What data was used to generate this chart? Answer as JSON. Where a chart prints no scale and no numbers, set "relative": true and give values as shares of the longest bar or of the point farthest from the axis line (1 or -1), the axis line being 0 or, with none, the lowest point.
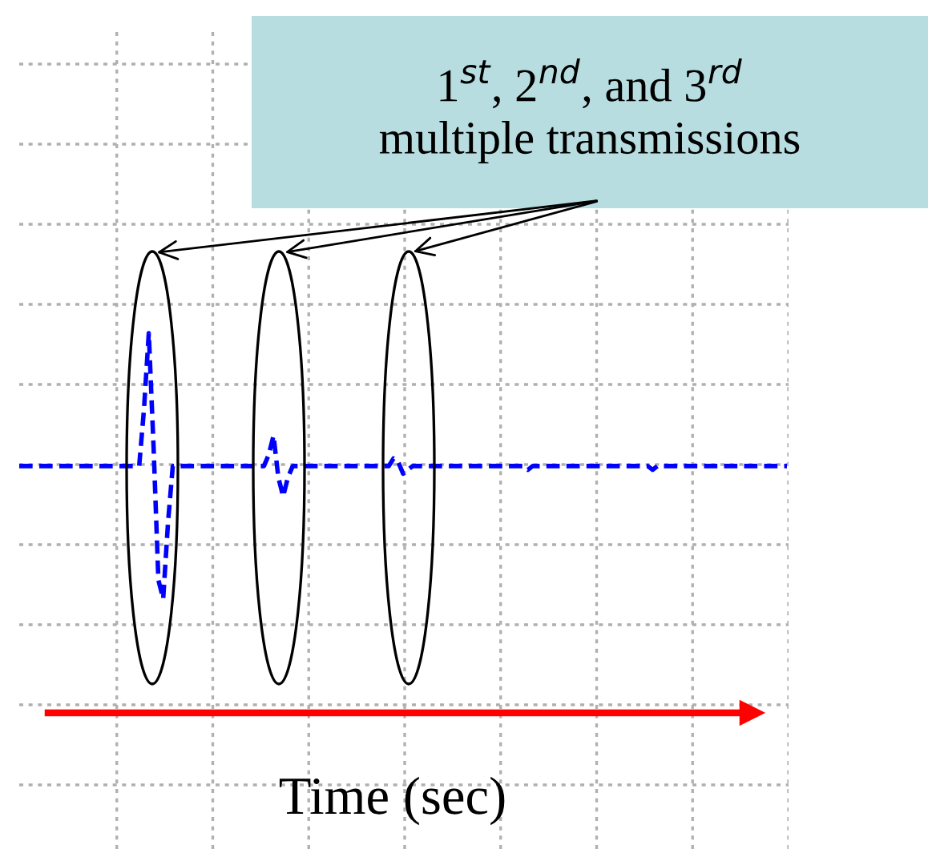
{
  "chart_data": {
    "type": "line",
    "relative": true,
    "xlabel": "Time (sec)",
    "grid": true,
    "line_style": "dashed",
    "annotations": [
      "1$^{st}$, 2$^{nd}$, and 3$^{rd}$\nmultiple transmissions"
    ],
    "categories": [
      null,
      null,
      null,
      null,
      null,
      null,
      null,
      null,
      null,
      null,
      null,
      null,
      null,
      null,
      null,
      null,
      null,
      null,
      null,
      null,
      null,
      null,
      null,
      null,
      null,
      null,
      null,
      null,
      null,
      null,
      null,
      null,
      null,
      null,
      null,
      null,
      null,
      null,
      null,
      null,
      null,
      null,
      null,
      null,
      null,
      null,
      null,
      null,
      null,
      null,
      null,
      null,
      null,
      null,
      null,
      null,
      null,
      null,
      null,
      null,
      null,
      null,
      null,
      null,
      null,
      null,
      null,
      null,
      null,
      null,
      null,
      null,
      null,
      null,
      null,
      null,
      null,
      null,
      null,
      null,
      null,
      null,
      null,
      null,
      null,
      null,
      null,
      null,
      null,
      null,
      null,
      null,
      null,
      null,
      null,
      null,
      null,
      null,
      null,
      null,
      null,
      null,
      null,
      null,
      null,
      null,
      null,
      null,
      null,
      null,
      null,
      null,
      null,
      null,
      null,
      null,
      null,
      null,
      null,
      null,
      null,
      null,
      null,
      null,
      null,
      null,
      null,
      null,
      null,
      null,
      null,
      null,
      null,
      null,
      null,
      null,
      null,
      null,
      null,
      null,
      null,
      null,
      null,
      null,
      null,
      null,
      null,
      null,
      null,
      null,
      null,
      null,
      null,
      null,
      null,
      null,
      null,
      null,
      null,
      null,
      null
    ],
    "series": [
      {
        "color": "#0000ff",
        "values": [
          0.65,
          0.65,
          0.65,
          0.65,
          0.65,
          0.65,
          0.65,
          0.65,
          0.65,
          0.65,
          0.65,
          0.65,
          0.65,
          0.65,
          0.65,
          0.65,
          0.65,
          0.65,
          0.65,
          0.65,
          0.65,
          0.65,
          0.65,
          0.65,
          0.65,
          0.65,
          0.8,
          1.0,
          0.7,
          0.35,
          0.3,
          0.5,
          0.65,
          0.65,
          0.65,
          0.65,
          0.65,
          0.65,
          0.65,
          0.65,
          0.65,
          0.65,
          0.65,
          0.65,
          0.65,
          0.65,
          0.65,
          0.65,
          0.65,
          0.65,
          0.65,
          0.65,
          0.68,
          0.73,
          0.62,
          0.57,
          0.62,
          0.65,
          0.65,
          0.65,
          0.65,
          0.65,
          0.65,
          0.65,
          0.65,
          0.65,
          0.65,
          0.65,
          0.65,
          0.65,
          0.65,
          0.65,
          0.65,
          0.65,
          0.65,
          0.65,
          0.65,
          0.65,
          0.67,
          0.66,
          0.63,
          0.64,
          0.65,
          0.65,
          0.65,
          0.65,
          0.65,
          0.65,
          0.65,
          0.65,
          0.65,
          0.65,
          0.65,
          0.65,
          0.65,
          0.65,
          0.65,
          0.65,
          0.65,
          0.65,
          0.65,
          0.65,
          0.65,
          0.65,
          0.65,
          0.65,
          0.64,
          0.65,
          0.65,
          0.65,
          0.65,
          0.65,
          0.65,
          0.65,
          0.65,
          0.65,
          0.65,
          0.65,
          0.65,
          0.65,
          0.65,
          0.65,
          0.65,
          0.65,
          0.65,
          0.65,
          0.65,
          0.65,
          0.65,
          0.65,
          0.65,
          0.65,
          0.64,
          0.65,
          0.65,
          0.65,
          0.65,
          0.65,
          0.65,
          0.65,
          0.65,
          0.65,
          0.65,
          0.65,
          0.65,
          0.65,
          0.65,
          0.65,
          0.65,
          0.65,
          0.65,
          0.65,
          0.65,
          0.65,
          0.65,
          0.65,
          0.65,
          0.65,
          0.65,
          0.65,
          0.65
        ]
      }
    ]
  }
}
